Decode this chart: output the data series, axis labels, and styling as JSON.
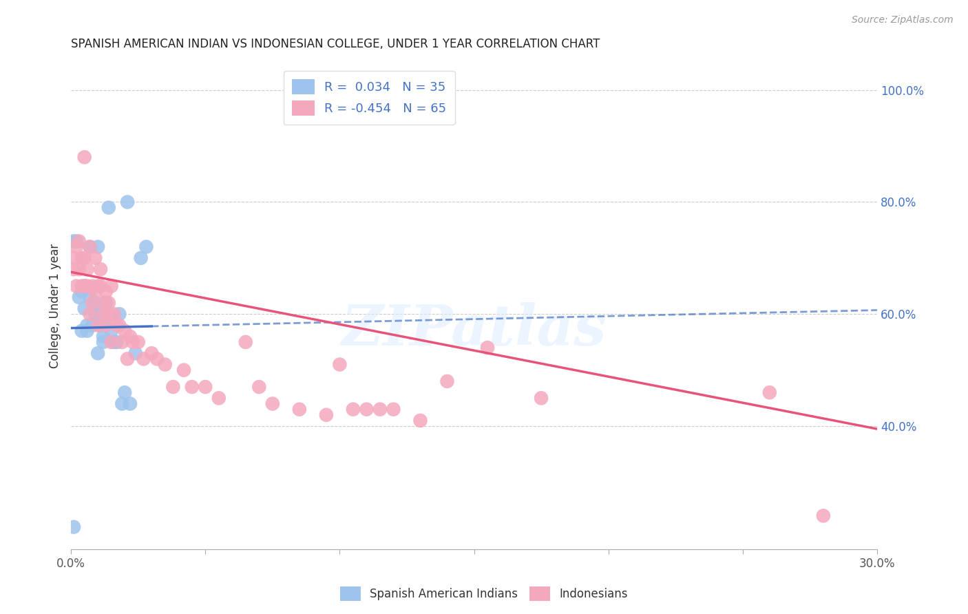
{
  "title": "SPANISH AMERICAN INDIAN VS INDONESIAN COLLEGE, UNDER 1 YEAR CORRELATION CHART",
  "source": "Source: ZipAtlas.com",
  "ylabel": "College, Under 1 year",
  "x_min": 0.0,
  "x_max": 0.3,
  "y_min": 0.18,
  "y_max": 1.05,
  "x_ticks": [
    0.0,
    0.05,
    0.1,
    0.15,
    0.2,
    0.25,
    0.3
  ],
  "y_ticks_right": [
    0.4,
    0.6,
    0.8,
    1.0
  ],
  "y_tick_labels_right": [
    "40.0%",
    "60.0%",
    "80.0%",
    "100.0%"
  ],
  "legend_label1": "Spanish American Indians",
  "legend_label2": "Indonesians",
  "color_blue": "#9EC4ED",
  "color_pink": "#F4A8BC",
  "color_blue_line": "#4472C4",
  "color_pink_line": "#E8537A",
  "color_blue_text": "#4472C4",
  "color_grid": "#CCCCCC",
  "watermark_text": "ZIPatlas",
  "blue_dots_x": [
    0.001,
    0.002,
    0.003,
    0.004,
    0.004,
    0.005,
    0.005,
    0.006,
    0.006,
    0.007,
    0.007,
    0.008,
    0.009,
    0.009,
    0.01,
    0.01,
    0.011,
    0.011,
    0.012,
    0.012,
    0.013,
    0.013,
    0.014,
    0.015,
    0.016,
    0.017,
    0.018,
    0.019,
    0.02,
    0.021,
    0.022,
    0.024,
    0.026,
    0.028,
    0.001
  ],
  "blue_dots_y": [
    0.22,
    0.73,
    0.63,
    0.64,
    0.57,
    0.61,
    0.65,
    0.58,
    0.57,
    0.72,
    0.63,
    0.58,
    0.62,
    0.6,
    0.53,
    0.72,
    0.6,
    0.58,
    0.56,
    0.55,
    0.62,
    0.58,
    0.79,
    0.57,
    0.55,
    0.55,
    0.6,
    0.44,
    0.46,
    0.8,
    0.44,
    0.53,
    0.7,
    0.72,
    0.73
  ],
  "pink_dots_x": [
    0.001,
    0.001,
    0.002,
    0.002,
    0.003,
    0.003,
    0.004,
    0.004,
    0.005,
    0.005,
    0.005,
    0.006,
    0.006,
    0.007,
    0.007,
    0.008,
    0.008,
    0.009,
    0.009,
    0.01,
    0.01,
    0.011,
    0.011,
    0.012,
    0.012,
    0.013,
    0.013,
    0.014,
    0.014,
    0.015,
    0.015,
    0.016,
    0.017,
    0.018,
    0.019,
    0.02,
    0.021,
    0.022,
    0.023,
    0.025,
    0.027,
    0.03,
    0.032,
    0.035,
    0.038,
    0.042,
    0.045,
    0.05,
    0.055,
    0.065,
    0.07,
    0.075,
    0.085,
    0.095,
    0.1,
    0.105,
    0.11,
    0.115,
    0.12,
    0.13,
    0.14,
    0.155,
    0.175,
    0.26,
    0.28
  ],
  "pink_dots_y": [
    0.68,
    0.7,
    0.65,
    0.72,
    0.68,
    0.73,
    0.7,
    0.65,
    0.7,
    0.65,
    0.88,
    0.68,
    0.65,
    0.72,
    0.6,
    0.65,
    0.62,
    0.7,
    0.64,
    0.65,
    0.58,
    0.68,
    0.65,
    0.62,
    0.6,
    0.64,
    0.58,
    0.62,
    0.6,
    0.65,
    0.55,
    0.6,
    0.58,
    0.58,
    0.55,
    0.57,
    0.52,
    0.56,
    0.55,
    0.55,
    0.52,
    0.53,
    0.52,
    0.51,
    0.47,
    0.5,
    0.47,
    0.47,
    0.45,
    0.55,
    0.47,
    0.44,
    0.43,
    0.42,
    0.51,
    0.43,
    0.43,
    0.43,
    0.43,
    0.41,
    0.48,
    0.54,
    0.45,
    0.46,
    0.24
  ],
  "blue_line_x": [
    0.0,
    0.3
  ],
  "blue_line_y": [
    0.575,
    0.607
  ],
  "pink_line_x": [
    0.0,
    0.3
  ],
  "pink_line_y": [
    0.675,
    0.395
  ]
}
